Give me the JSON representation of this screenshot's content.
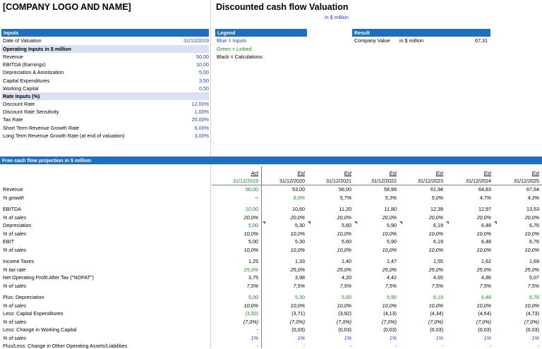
{
  "header": {
    "company": "[COMPANY LOGO AND NAME]",
    "title": "Discounted cash flow Valuation",
    "unit": "in $ million"
  },
  "inputs": {
    "bar": "Inputs",
    "date_label": "Date of Valuation",
    "date_value": "31/12/2019",
    "operating_header": "Operating Inputs in $ million",
    "operating": [
      {
        "label": "Revenue",
        "value": "50,00"
      },
      {
        "label": "EBITDA (Earnings)",
        "value": "10,00"
      },
      {
        "label": "Depreciation & Amotization",
        "value": "5,00"
      },
      {
        "label": "Capital Expenditures",
        "value": "3,50"
      },
      {
        "label": "Working Capital",
        "value": "0,50"
      }
    ],
    "rate_header": "Rate Inputs (%)",
    "rates": [
      {
        "label": "Discount Rate",
        "value": "12,00%"
      },
      {
        "label": "Discount Rate Sensitivity",
        "value": "1,00%"
      },
      {
        "label": "Tax Rate",
        "value": "25,00%"
      },
      {
        "label": "Short Term Revenue Growth Rate",
        "value": "6,00%"
      },
      {
        "label": "Long Term Revenue Growth Rate (at end of valuation)",
        "value": "3,00%"
      }
    ]
  },
  "legend": {
    "bar": "Legend",
    "items": [
      "Blue = Inputs",
      "Green = Linked",
      "Black = Calculations"
    ],
    "colors": [
      "#1f3fd0",
      "#1a8a1a",
      "#000000"
    ]
  },
  "result": {
    "bar": "Result",
    "label": "Company Value",
    "unit": "in $ million",
    "value": "67,31"
  },
  "projection": {
    "bar": "Free cash flow projection in $ million",
    "columns": [
      {
        "type": "Act",
        "date": "31/12/2019"
      },
      {
        "type": "Est",
        "date": "31/12/2020"
      },
      {
        "type": "Est",
        "date": "31/12/2021"
      },
      {
        "type": "Est",
        "date": "31/12/2022"
      },
      {
        "type": "Est",
        "date": "31/12/2023"
      },
      {
        "type": "Est",
        "date": "31/12/2024"
      },
      {
        "type": "Est",
        "date": "31/12/2025"
      }
    ],
    "rows": [
      {
        "label": "Revenue",
        "italic": false,
        "values": [
          "50,00",
          "53,00",
          "56,00",
          "58,99",
          "61,94",
          "64,83",
          "67,64"
        ],
        "colors": [
          "g",
          "k",
          "k",
          "k",
          "k",
          "k",
          "k"
        ]
      },
      {
        "label": "% growth",
        "italic": true,
        "values": [
          "--",
          "6,0%",
          "5,7%",
          "5,3%",
          "5,0%",
          "4,7%",
          "4,3%"
        ],
        "colors": [
          "k",
          "g",
          "k",
          "k",
          "k",
          "k",
          "k"
        ]
      },
      {
        "label": "EBITDA",
        "italic": false,
        "values": [
          "10,00",
          "10,60",
          "11,20",
          "11,80",
          "12,39",
          "12,97",
          "13,53"
        ],
        "colors": [
          "g",
          "k",
          "k",
          "k",
          "k",
          "k",
          "k"
        ]
      },
      {
        "label": "% of sales",
        "italic": true,
        "values": [
          "20,0%",
          "20,0%",
          "20,0%",
          "20,0%",
          "20,0%",
          "20,0%",
          "20,0%"
        ],
        "colors": [
          "k",
          "k",
          "k",
          "k",
          "k",
          "k",
          "k"
        ]
      },
      {
        "label": "Depreciation",
        "italic": false,
        "values": [
          "5,00",
          "5,30",
          "5,60",
          "5,90",
          "6,19",
          "6,48",
          "6,76"
        ],
        "colors": [
          "g",
          "k",
          "k",
          "k",
          "k",
          "k",
          "k"
        ]
      },
      {
        "label": "% of sales",
        "italic": true,
        "values": [
          "10,0%",
          "10,0%",
          "10,0%",
          "10,0%",
          "10,0%",
          "10,0%",
          "10,0%"
        ],
        "colors": [
          "k",
          "k",
          "k",
          "k",
          "k",
          "k",
          "k"
        ]
      },
      {
        "label": "EBIT",
        "italic": false,
        "values": [
          "5,00",
          "5,30",
          "5,60",
          "5,90",
          "6,19",
          "6,48",
          "6,76"
        ],
        "colors": [
          "k",
          "k",
          "k",
          "k",
          "k",
          "k",
          "k"
        ]
      },
      {
        "label": "% of sales",
        "italic": true,
        "values": [
          "10,0%",
          "10,0%",
          "10,0%",
          "10,0%",
          "10,0%",
          "10,0%",
          "10,0%"
        ],
        "colors": [
          "k",
          "k",
          "k",
          "k",
          "k",
          "k",
          "k"
        ]
      },
      {
        "label": "Income Taxes",
        "italic": false,
        "values": [
          "1,25",
          "1,33",
          "1,40",
          "1,47",
          "1,55",
          "1,62",
          "1,69"
        ],
        "colors": [
          "k",
          "k",
          "k",
          "k",
          "k",
          "k",
          "k"
        ]
      },
      {
        "label": "% tax rate",
        "italic": true,
        "values": [
          "25,0%",
          "25,0%",
          "25,0%",
          "25,0%",
          "25,0%",
          "25,0%",
          "25,0%"
        ],
        "colors": [
          "g",
          "k",
          "k",
          "k",
          "k",
          "k",
          "k"
        ]
      },
      {
        "label": "Net Operating Profit After Tax (\"NOPAT\")",
        "italic": false,
        "values": [
          "3,75",
          "3,98",
          "4,20",
          "4,42",
          "4,65",
          "4,86",
          "5,07"
        ],
        "colors": [
          "k",
          "k",
          "k",
          "k",
          "k",
          "k",
          "k"
        ]
      },
      {
        "label": "% of sales",
        "italic": true,
        "values": [
          "7,5%",
          "7,5%",
          "7,5%",
          "7,5%",
          "7,5%",
          "7,5%",
          "7,5%"
        ],
        "colors": [
          "k",
          "k",
          "k",
          "k",
          "k",
          "k",
          "k"
        ]
      },
      {
        "label": "Plus: Depreciation",
        "italic": false,
        "values": [
          "5,00",
          "5,30",
          "5,60",
          "5,90",
          "6,19",
          "6,48",
          "6,76"
        ],
        "colors": [
          "g",
          "g",
          "g",
          "g",
          "g",
          "g",
          "g"
        ]
      },
      {
        "label": "% of sales",
        "italic": true,
        "values": [
          "10,0%",
          "10,0%",
          "10,0%",
          "10,0%",
          "10,0%",
          "10,0%",
          "10,0%"
        ],
        "colors": [
          "k",
          "k",
          "k",
          "k",
          "k",
          "k",
          "k"
        ]
      },
      {
        "label": "Less: Capital Expenditures",
        "italic": false,
        "values": [
          "(3,50)",
          "(3,71)",
          "(3,92)",
          "(4,13)",
          "(4,34)",
          "(4,54)",
          "(4,73)"
        ],
        "colors": [
          "g",
          "k",
          "k",
          "k",
          "k",
          "k",
          "k"
        ]
      },
      {
        "label": "% of sales",
        "italic": true,
        "values": [
          "(7,0%)",
          "(7,0%)",
          "(7,0%)",
          "(7,0%)",
          "(7,0%)",
          "(7,0%)",
          "(7,0%)"
        ],
        "colors": [
          "k",
          "k",
          "k",
          "k",
          "k",
          "k",
          "k"
        ]
      },
      {
        "label": "Less: Change in Working Capital",
        "italic": false,
        "values": [
          "-",
          "(0,03)",
          "(0,03)",
          "(0,03)",
          "(0,03)",
          "(0,03)",
          "(0,03)"
        ],
        "colors": [
          "k",
          "k",
          "k",
          "k",
          "k",
          "k",
          "k"
        ]
      },
      {
        "label": "% of sales",
        "italic": true,
        "values": [
          "1%",
          "1%",
          "1%",
          "1%",
          "1%",
          "1%",
          "1%"
        ],
        "colors": [
          "b",
          "b",
          "b",
          "b",
          "b",
          "b",
          "b"
        ]
      },
      {
        "label": "Plus/Less: Change in Other Operating Assets/Liabilities",
        "italic": false,
        "values": [
          "-",
          "-",
          "-",
          "-",
          "-",
          "-",
          "-"
        ],
        "colors": [
          "b",
          "b",
          "b",
          "b",
          "b",
          "b",
          "b"
        ]
      }
    ]
  },
  "accent": "#1f6fbf"
}
